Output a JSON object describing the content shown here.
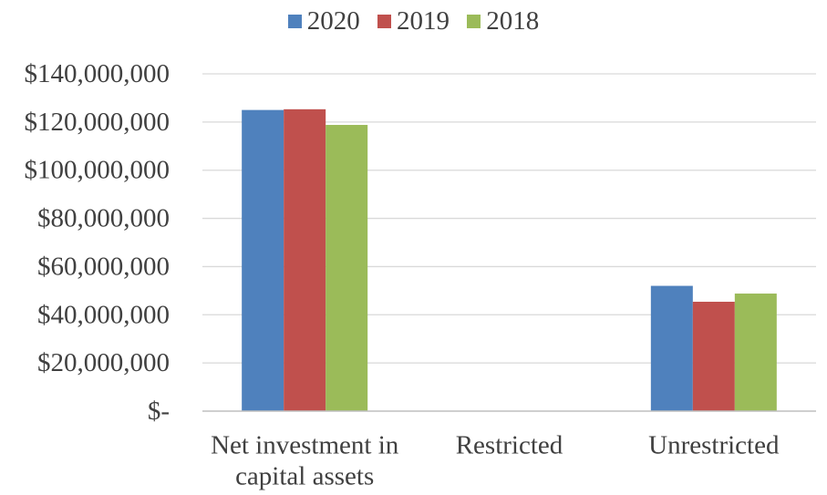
{
  "chart_data": {
    "type": "bar",
    "title": "",
    "xlabel": "",
    "ylabel": "",
    "categories": [
      "Net investment in capital assets",
      "Restricted",
      "Unrestricted"
    ],
    "category_label_lines": [
      [
        "Net investment in",
        "capital assets"
      ],
      [
        "Restricted"
      ],
      [
        "Unrestricted"
      ]
    ],
    "series": [
      {
        "name": "2020",
        "color": "#4F81BD",
        "values": [
          125000000,
          0,
          52000000
        ]
      },
      {
        "name": "2019",
        "color": "#C0504D",
        "values": [
          125300000,
          0,
          45400000
        ]
      },
      {
        "name": "2018",
        "color": "#9BBB59",
        "values": [
          118800000,
          0,
          48800000
        ]
      }
    ],
    "ylim": [
      0,
      140000000
    ],
    "yticks": [
      0,
      20000000,
      40000000,
      60000000,
      80000000,
      100000000,
      120000000,
      140000000
    ],
    "ytick_labels": [
      "$-",
      "$20,000,000",
      "$40,000,000",
      "$60,000,000",
      "$80,000,000",
      "$100,000,000",
      "$120,000,000",
      "$140,000,000"
    ],
    "grid": true,
    "legend_position": "top-center",
    "colors": {
      "grid": "#D9D9D9",
      "axis": "#BFBFBF",
      "text": "#404040"
    }
  }
}
